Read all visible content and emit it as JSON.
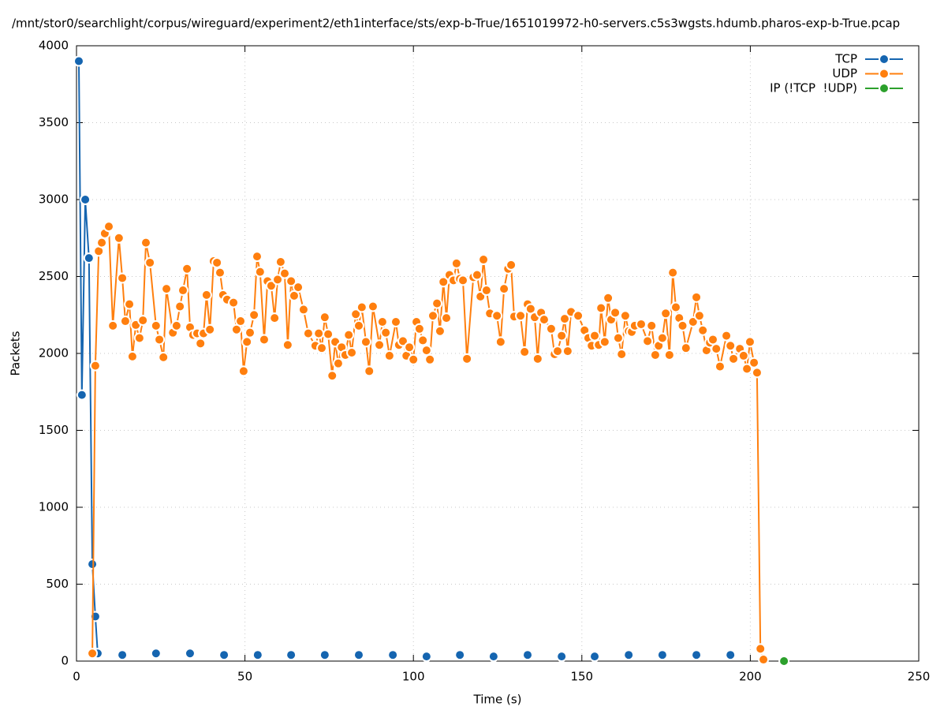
{
  "chart_data": {
    "type": "line",
    "title": "/mnt/stor0/searchlight/corpus/wireguard/experiment2/eth1interface/sts/exp-b-True/1651019972-h0-servers.c5s3wgsts.hdumb.pharos-exp-b-True.pcap",
    "xlabel": "Time (s)",
    "ylabel": "Packets",
    "xlim": [
      0,
      250
    ],
    "ylim": [
      0,
      4000
    ],
    "xticks": [
      0,
      50,
      100,
      150,
      200,
      250
    ],
    "yticks": [
      0,
      500,
      1000,
      1500,
      2000,
      2500,
      3000,
      3500,
      4000
    ],
    "grid": true,
    "legend": "top-right",
    "series": [
      {
        "name": "TCP",
        "color": "#1565b0",
        "x": [
          0.7,
          1.6,
          2.6,
          3.7,
          4.7,
          5.6,
          6.3,
          10,
          13.6,
          18.6,
          23.6,
          28.6,
          33.7,
          38.7,
          43.8,
          48.8,
          53.8,
          58.8,
          63.7,
          68.7,
          73.7,
          78.7,
          83.8,
          88.8,
          93.9,
          98.9,
          103.9,
          108.9,
          113.8,
          118.8,
          123.8,
          128.8,
          133.9,
          138.9,
          144.0,
          148.9,
          153.8,
          158.8,
          163.9,
          168.9,
          173.9,
          178.9,
          184.0,
          189.0,
          194.1
        ],
        "values": [
          3900,
          1730,
          3000,
          2620,
          630,
          290,
          50,
          null,
          40,
          null,
          50,
          null,
          50,
          null,
          40,
          null,
          40,
          null,
          40,
          null,
          40,
          null,
          40,
          null,
          40,
          null,
          30,
          null,
          40,
          null,
          30,
          null,
          40,
          null,
          30,
          null,
          30,
          null,
          40,
          null,
          40,
          null,
          40,
          null,
          40
        ]
      },
      {
        "name": "UDP",
        "color": "#ff7f0e",
        "x": [
          4.7,
          5.6,
          6.6,
          7.5,
          8.4,
          9.6,
          10.8,
          12.6,
          13.6,
          14.5,
          15.7,
          16.6,
          17.6,
          18.7,
          19.7,
          20.6,
          21.8,
          23.6,
          24.6,
          25.8,
          26.7,
          28.6,
          29.7,
          30.7,
          31.6,
          32.8,
          33.7,
          34.6,
          35.8,
          36.8,
          37.7,
          38.6,
          39.6,
          40.7,
          41.7,
          42.6,
          43.5,
          44.7,
          46.6,
          47.5,
          48.7,
          49.6,
          50.6,
          51.5,
          52.7,
          53.6,
          54.5,
          55.7,
          56.7,
          57.8,
          58.8,
          59.7,
          60.6,
          61.8,
          62.7,
          63.7,
          64.6,
          65.8,
          67.4,
          68.8,
          70.9,
          71.9,
          72.8,
          73.7,
          74.7,
          75.9,
          76.8,
          77.7,
          78.7,
          79.8,
          80.8,
          81.7,
          82.9,
          83.8,
          84.7,
          85.9,
          86.9,
          88.0,
          89.9,
          90.8,
          91.8,
          92.9,
          94.8,
          95.7,
          96.9,
          97.9,
          98.8,
          100.0,
          100.9,
          101.8,
          102.8,
          103.9,
          104.9,
          105.8,
          107.0,
          107.9,
          108.9,
          109.8,
          110.7,
          111.9,
          112.8,
          113.8,
          114.7,
          115.9,
          117.8,
          118.9,
          119.9,
          120.8,
          121.7,
          122.7,
          124.8,
          125.9,
          126.9,
          128.1,
          129.0,
          129.9,
          131.8,
          133.0,
          133.9,
          134.8,
          136.0,
          136.9,
          137.9,
          138.8,
          140.9,
          141.9,
          142.8,
          144.0,
          144.9,
          145.8,
          146.8,
          148.9,
          150.8,
          151.9,
          152.9,
          153.8,
          155.0,
          155.7,
          156.8,
          157.8,
          158.7,
          159.9,
          160.8,
          161.8,
          162.9,
          163.9,
          164.8,
          165.7,
          167.6,
          169.5,
          170.7,
          171.8,
          172.8,
          173.9,
          174.9,
          176.0,
          177.0,
          177.9,
          178.9,
          179.9,
          180.9,
          183.0,
          184.0,
          184.9,
          185.9,
          187.0,
          188.0,
          188.9,
          189.9,
          191.0,
          192.9,
          194.1,
          195.0,
          196.9,
          198.0,
          199.0,
          199.9,
          201.1,
          202.0,
          203.0,
          203.9
        ],
        "values": [
          50,
          1920,
          2665,
          2720,
          2780,
          2825,
          2180,
          2750,
          2490,
          2210,
          2320,
          1980,
          2185,
          2100,
          2215,
          2720,
          2590,
          2180,
          2090,
          1975,
          2420,
          2135,
          2180,
          2305,
          2410,
          2550,
          2170,
          2120,
          2130,
          2065,
          2130,
          2380,
          2155,
          2600,
          2590,
          2525,
          2380,
          2350,
          2330,
          2155,
          2210,
          1885,
          2075,
          2135,
          2250,
          2630,
          2530,
          2090,
          2470,
          2440,
          2230,
          2480,
          2595,
          2520,
          2055,
          2470,
          2375,
          2430,
          2285,
          2130,
          2050,
          2130,
          2035,
          2235,
          2125,
          1855,
          2075,
          1935,
          2040,
          1990,
          2120,
          2005,
          2255,
          2180,
          2300,
          2075,
          1885,
          2305,
          2055,
          2205,
          2135,
          1985,
          2205,
          2055,
          2080,
          1985,
          2040,
          1960,
          2205,
          2160,
          2085,
          2020,
          1960,
          2245,
          2325,
          2145,
          2465,
          2230,
          2510,
          2475,
          2585,
          2485,
          2475,
          1965,
          2495,
          2510,
          2370,
          2610,
          2410,
          2260,
          2245,
          2075,
          2420,
          2550,
          2575,
          2240,
          2245,
          2010,
          2320,
          2290,
          2235,
          1965,
          2265,
          2220,
          2160,
          1995,
          2015,
          2115,
          2225,
          2015,
          2270,
          2245,
          2150,
          2100,
          2050,
          2115,
          2055,
          2295,
          2075,
          2360,
          2220,
          2265,
          2100,
          1995,
          2245,
          2145,
          2140,
          2180,
          2190,
          2080,
          2180,
          1990,
          2050,
          2100,
          2260,
          1990,
          2525,
          2300,
          2230,
          2180,
          2035,
          2205,
          2365,
          2245,
          2150,
          2020,
          2070,
          2090,
          2030,
          1915,
          2115,
          2050,
          1965,
          2030,
          1985,
          1900,
          2075,
          1940,
          1875,
          80,
          10
        ]
      },
      {
        "name": "IP (!TCP  !UDP)",
        "color": "#2ca02c",
        "x": [
          210.0
        ],
        "values": [
          0
        ]
      }
    ]
  }
}
